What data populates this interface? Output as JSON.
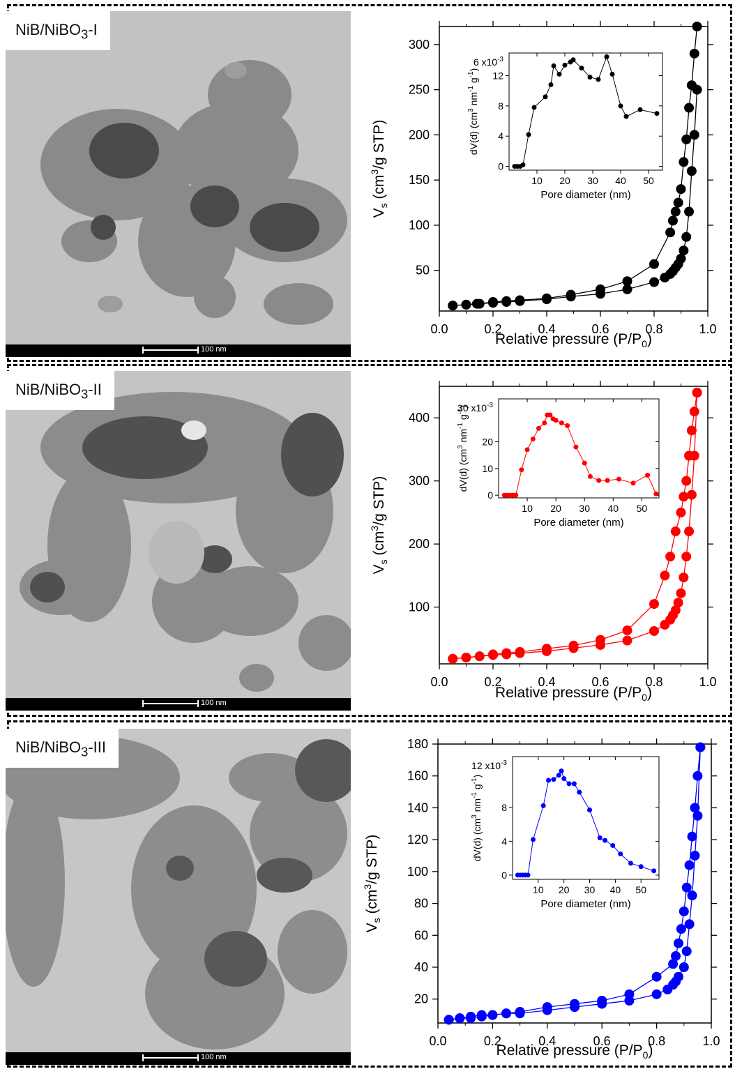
{
  "panels": [
    {
      "sample_label": "NiB/NiBO",
      "sample_sub": "3",
      "sample_suffix": "-I",
      "scale_label": "100 nm",
      "color": "#000000"
    },
    {
      "sample_label": "NiB/NiBO",
      "sample_sub": "3",
      "sample_suffix": "-II",
      "scale_label": "100 nm",
      "color": "#ff0000"
    },
    {
      "sample_label": "NiB/NiBO",
      "sample_sub": "3",
      "sample_suffix": "-III",
      "scale_label": "100 nm",
      "color": "#0000ff"
    }
  ],
  "chart_data": [
    {
      "type": "line",
      "xlabel": "Relative pressure (P/P0)",
      "ylabel": "Vs (cm3/g STP)",
      "xlim": [
        0.0,
        1.0
      ],
      "ylim": [
        5,
        320
      ],
      "xticks": [
        "0.0",
        "0.2",
        "0.4",
        "0.6",
        "0.8",
        "1.0"
      ],
      "yticks": [
        50,
        100,
        150,
        200,
        250,
        300
      ],
      "color": "#000000",
      "series": [
        {
          "x": [
            0.05,
            0.1,
            0.14,
            0.2,
            0.25,
            0.3,
            0.4,
            0.49,
            0.6,
            0.7,
            0.8,
            0.84,
            0.86,
            0.87,
            0.88,
            0.89,
            0.9,
            0.91,
            0.92,
            0.93,
            0.94,
            0.95,
            0.96
          ],
          "y": [
            11,
            12,
            13,
            14,
            15,
            16,
            18,
            21,
            24,
            29,
            37,
            42,
            46,
            49,
            53,
            57,
            63,
            72,
            87,
            115,
            160,
            200,
            250
          ]
        },
        {
          "x": [
            0.96,
            0.95,
            0.94,
            0.93,
            0.92,
            0.91,
            0.9,
            0.89,
            0.88,
            0.87,
            0.86,
            0.8,
            0.7,
            0.6,
            0.49,
            0.4,
            0.3,
            0.25,
            0.2,
            0.15,
            0.1,
            0.05
          ],
          "y": [
            320,
            290,
            255,
            230,
            195,
            170,
            140,
            125,
            115,
            105,
            92,
            57,
            38,
            29,
            23,
            19,
            17,
            16,
            15,
            13,
            12,
            11
          ]
        }
      ],
      "inset": {
        "xlabel": "Pore diameter (nm)",
        "ylabel": "dV(d) (cm3 nm-1 g-1)",
        "multiplier": "x10",
        "multiplier_exp": "-3",
        "top_tick": "6",
        "xlim": [
          0,
          55
        ],
        "ylim": [
          -0.5,
          15
        ],
        "xticks": [
          10,
          20,
          30,
          40,
          50
        ],
        "yticks": [
          0,
          4,
          8,
          12
        ],
        "x": [
          2,
          3,
          4,
          5,
          7,
          9,
          13,
          15,
          16,
          18,
          20,
          22,
          23,
          26,
          29,
          32,
          35,
          37,
          40,
          42,
          47,
          53
        ],
        "y": [
          0,
          0,
          0,
          0.2,
          4.2,
          7.8,
          9.2,
          10.8,
          13.3,
          12.2,
          13.4,
          13.8,
          14.1,
          13,
          11.8,
          11.5,
          14.5,
          12.2,
          8,
          6.6,
          7.5,
          7
        ]
      }
    },
    {
      "type": "line",
      "xlabel": "Relative pressure (P/P0)",
      "ylabel": "Vs (cm3/g STP)",
      "xlim": [
        0.0,
        1.0
      ],
      "ylim": [
        10,
        450
      ],
      "xticks": [
        "0.0",
        "0.2",
        "0.4",
        "0.6",
        "0.8",
        "1.0"
      ],
      "yticks": [
        100,
        200,
        300,
        400
      ],
      "color": "#ff0000",
      "series": [
        {
          "x": [
            0.05,
            0.1,
            0.15,
            0.2,
            0.25,
            0.3,
            0.4,
            0.5,
            0.6,
            0.7,
            0.8,
            0.84,
            0.86,
            0.87,
            0.88,
            0.89,
            0.9,
            0.91,
            0.92,
            0.93,
            0.94,
            0.95,
            0.96
          ],
          "y": [
            18,
            20,
            22,
            24,
            25,
            27,
            30,
            35,
            40,
            47,
            62,
            72,
            80,
            87,
            95,
            107,
            122,
            147,
            180,
            220,
            278,
            340,
            440
          ]
        },
        {
          "x": [
            0.96,
            0.95,
            0.94,
            0.93,
            0.92,
            0.91,
            0.9,
            0.88,
            0.86,
            0.84,
            0.8,
            0.7,
            0.6,
            0.5,
            0.4,
            0.3,
            0.25,
            0.2,
            0.15,
            0.1,
            0.05
          ],
          "y": [
            440,
            410,
            380,
            340,
            300,
            275,
            250,
            220,
            180,
            150,
            105,
            63,
            48,
            39,
            34,
            29,
            27,
            25,
            22,
            20,
            18
          ]
        }
      ],
      "inset": {
        "xlabel": "Pore diameter (nm)",
        "ylabel": "dV(d) (cm3 nm-1 g-1)",
        "multiplier": "x10",
        "multiplier_exp": "-3",
        "top_tick": "30",
        "xlim": [
          0,
          56
        ],
        "ylim": [
          -1,
          36
        ],
        "xticks": [
          10,
          20,
          30,
          40,
          50
        ],
        "yticks": [
          0,
          10,
          20
        ],
        "x": [
          2,
          3,
          4,
          5,
          6,
          8,
          10,
          12,
          14,
          16,
          17,
          18,
          19,
          20,
          22,
          24,
          27,
          30,
          32,
          35,
          38,
          42,
          47,
          52,
          55
        ],
        "y": [
          0,
          0,
          0,
          0,
          0,
          9.5,
          17,
          21,
          25,
          27,
          30,
          30,
          28.5,
          28,
          27,
          26,
          18,
          12,
          7,
          5.5,
          5.5,
          6,
          4.5,
          7.5,
          0.5
        ]
      }
    },
    {
      "type": "line",
      "xlabel": "Relative pressure (P/P0)",
      "ylabel": "Vs (cm3/g STP)",
      "xlim": [
        0.0,
        1.0
      ],
      "ylim": [
        5,
        180
      ],
      "xticks": [
        "0.0",
        "0.2",
        "0.4",
        "0.6",
        "0.8",
        "1.0"
      ],
      "yticks": [
        20,
        40,
        60,
        80,
        100,
        120,
        140,
        160,
        180
      ],
      "color": "#0000ff",
      "series": [
        {
          "x": [
            0.04,
            0.08,
            0.12,
            0.16,
            0.2,
            0.25,
            0.3,
            0.4,
            0.5,
            0.6,
            0.7,
            0.8,
            0.84,
            0.86,
            0.87,
            0.88,
            0.9,
            0.91,
            0.92,
            0.93,
            0.94,
            0.95,
            0.96
          ],
          "y": [
            7,
            8,
            9,
            10,
            10,
            11,
            11,
            13,
            15,
            17,
            19,
            23,
            26,
            29,
            31,
            34,
            40,
            50,
            67,
            85,
            110,
            135,
            178
          ]
        },
        {
          "x": [
            0.96,
            0.95,
            0.94,
            0.93,
            0.92,
            0.91,
            0.9,
            0.89,
            0.88,
            0.87,
            0.86,
            0.8,
            0.7,
            0.6,
            0.5,
            0.4,
            0.3,
            0.25,
            0.2,
            0.16,
            0.12,
            0.08,
            0.04
          ],
          "y": [
            178,
            160,
            140,
            122,
            104,
            90,
            75,
            64,
            55,
            47,
            42,
            34,
            23,
            19,
            17,
            15,
            12,
            11,
            10,
            9,
            8,
            8,
            7
          ]
        }
      ],
      "inset": {
        "xlabel": "Pore diameter (nm)",
        "ylabel": "dV(d) (cm3 nm-1 g-1)",
        "multiplier": "x10",
        "multiplier_exp": "-3",
        "top_tick": "12",
        "xlim": [
          0,
          57
        ],
        "ylim": [
          -0.5,
          14
        ],
        "xticks": [
          10,
          20,
          30,
          40,
          50
        ],
        "yticks": [
          0,
          4,
          8
        ],
        "x": [
          2,
          3,
          4,
          5,
          6,
          8,
          12,
          14,
          16,
          18,
          19,
          20,
          22,
          24,
          26,
          30,
          34,
          36,
          39,
          42,
          46,
          50,
          55
        ],
        "y": [
          0,
          0,
          0,
          0,
          0,
          4.2,
          8.2,
          11.2,
          11.3,
          11.8,
          12.3,
          11.4,
          10.8,
          10.8,
          9.8,
          7.7,
          4.4,
          4.1,
          3.5,
          2.5,
          1.4,
          1,
          0.5
        ]
      }
    }
  ]
}
